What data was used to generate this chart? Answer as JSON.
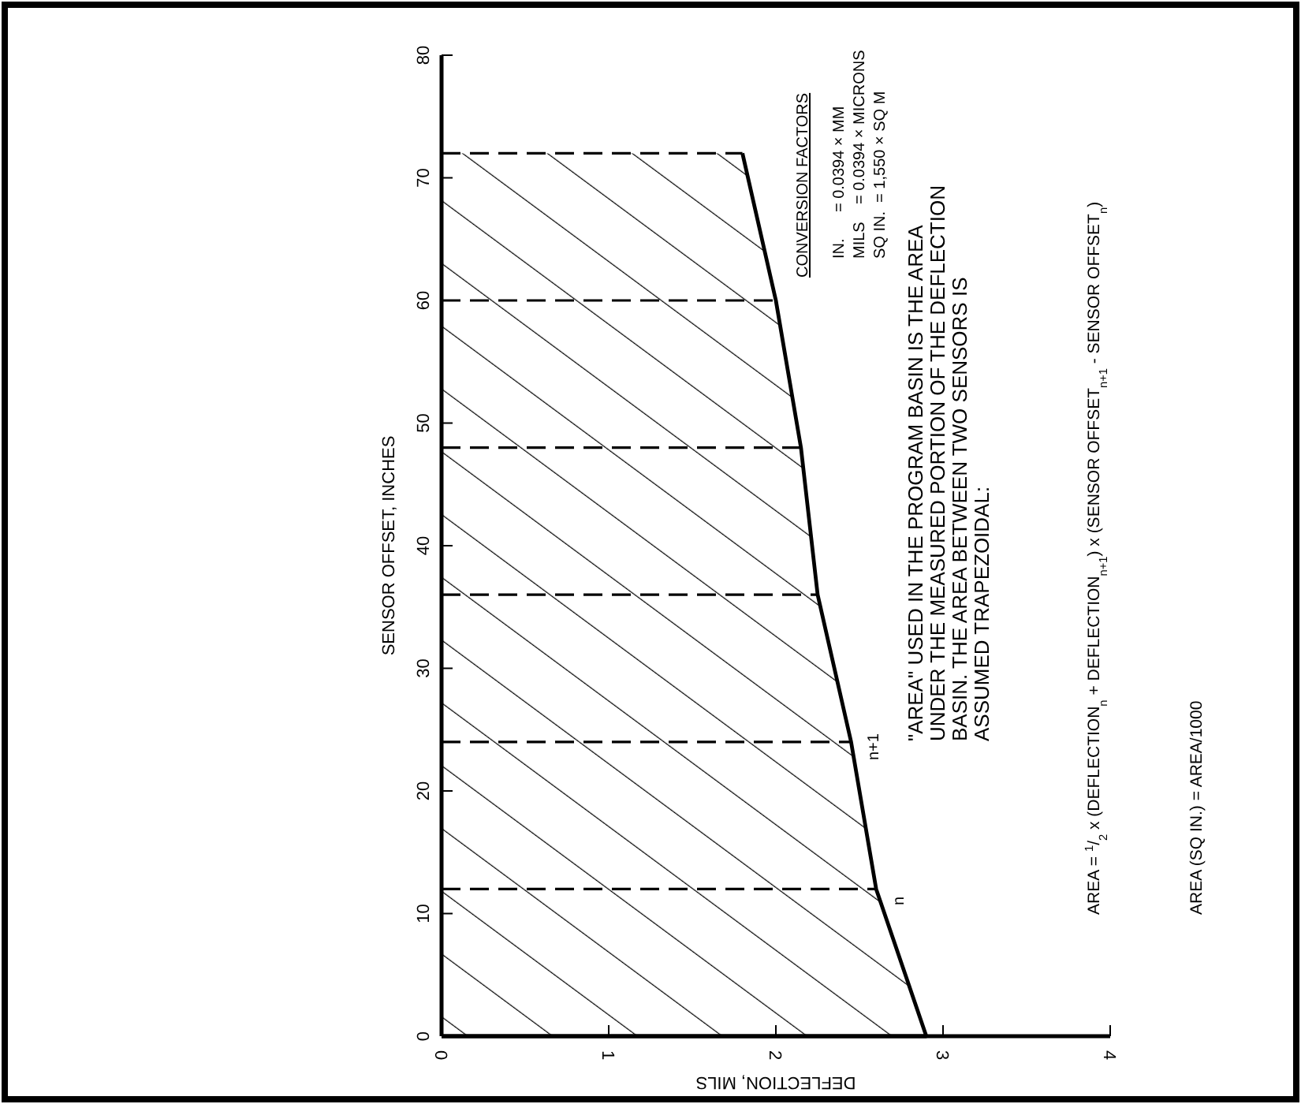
{
  "chart_data": {
    "type": "area",
    "orientation": "horizontal",
    "xlabel": "DEFLECTION, MILS",
    "ylabel": "SENSOR OFFSET, INCHES",
    "x": [
      0,
      12,
      24,
      36,
      48,
      60,
      72
    ],
    "series": [
      {
        "color": "#000000",
        "values": [
          2.9,
          2.6,
          2.45,
          2.25,
          2.15,
          2.0,
          1.8
        ]
      }
    ],
    "ref_lines": [
      {
        "axis": "y",
        "value": 12,
        "line_style": "dashed",
        "color": "#000000"
      },
      {
        "axis": "y",
        "value": 24,
        "line_style": "dashed",
        "color": "#000000"
      },
      {
        "axis": "y",
        "value": 36,
        "line_style": "dashed",
        "color": "#000000"
      },
      {
        "axis": "y",
        "value": 48,
        "line_style": "dashed",
        "color": "#000000"
      },
      {
        "axis": "y",
        "value": 60,
        "line_style": "dashed",
        "color": "#000000"
      },
      {
        "axis": "y",
        "value": 72,
        "line_style": "dashed",
        "color": "#000000"
      }
    ],
    "xlim": [
      0,
      4
    ],
    "xticks": [
      0,
      1,
      2,
      3,
      4
    ],
    "ylim": [
      0,
      80
    ],
    "yticks": [
      0,
      10,
      20,
      30,
      40,
      50,
      60,
      70,
      80
    ],
    "annotations": [
      "CONVERSION FACTORS",
      "IN.      = 0.0394 × MM",
      "MILS    = 0.0394 × MICRONS",
      "SQ IN.  = 1,550 × SQ M",
      "\"AREA\" USED IN THE PROGRAM BASIN IS THE AREA\nUNDER THE MEASURED PORTION OF THE DEFLECTION\nBASIN. THE AREA BETWEEN TWO SENSORS IS\nASSUMED TRAPEZOIDAL:",
      "AREA = $^{1}$/$_{2}$ x (DEFLECTION$_{n}$ + DEFLECTION$_{n+1}$) x (SENSOR OFFSET$_{n+1}$ - SENSOR OFFSET$_{n}$)",
      "AREA (SQ IN.) = AREA/1000",
      "n",
      "n+1"
    ]
  }
}
